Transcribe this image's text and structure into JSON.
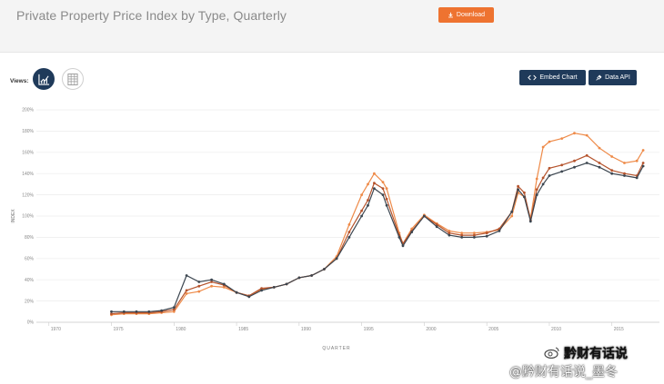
{
  "page": {
    "title": "Private Property Price Index by Type, Quarterly",
    "download_label": "Download"
  },
  "controls": {
    "views_label": "Views:",
    "embed_label": "Embed Chart",
    "api_label": "Data API"
  },
  "watermark": {
    "line1": "黔财有话说",
    "line2": "@黔财有话说_墨冬"
  },
  "colors": {
    "navy": "#1f3a5a",
    "orange": "#ee7330",
    "series_dark": "#3c4650",
    "series_mid": "#b5532c",
    "series_light": "#ee8a48"
  },
  "chart_data": {
    "type": "line",
    "xlabel": "QUARTER",
    "ylabel": "INDEX",
    "xlim": [
      1969,
      2018.8
    ],
    "ylim": [
      0,
      200
    ],
    "xticks": [
      "1970",
      "1975",
      "1980",
      "1985",
      "1990",
      "1995",
      "2000",
      "2005",
      "2010",
      "2015"
    ],
    "yticks": [
      "0%",
      "20%",
      "40%",
      "60%",
      "80%",
      "100%",
      "120%",
      "140%",
      "160%",
      "180%",
      "200%"
    ],
    "x": [
      1975,
      1976,
      1977,
      1978,
      1979,
      1980,
      1981,
      1982,
      1983,
      1984,
      1985,
      1986,
      1987,
      1988,
      1989,
      1990,
      1991,
      1992,
      1993,
      1994,
      1995,
      1995.5,
      1996,
      1996.7,
      1997,
      1998,
      1998.3,
      1999,
      2000,
      2001,
      2002,
      2003,
      2004,
      2005,
      2006,
      2007,
      2007.5,
      2008,
      2008.5,
      2009,
      2009.5,
      2010,
      2011,
      2012,
      2013,
      2014,
      2015,
      2016,
      2017,
      2017.5
    ],
    "series": [
      {
        "values": [
          10,
          10,
          10,
          10,
          11,
          14,
          44,
          38,
          40,
          36,
          28,
          24,
          30,
          33,
          36,
          42,
          44,
          50,
          60,
          80,
          100,
          110,
          126,
          120,
          110,
          80,
          72,
          85,
          100,
          90,
          82,
          80,
          80,
          81,
          86,
          104,
          125,
          118,
          95,
          120,
          130,
          138,
          142,
          146,
          150,
          146,
          140,
          138,
          136,
          147
        ]
      },
      {
        "values": [
          8,
          9,
          9,
          9,
          10,
          12,
          30,
          34,
          38,
          35,
          28,
          25,
          32,
          33,
          36,
          42,
          44,
          50,
          60,
          85,
          105,
          115,
          131,
          126,
          116,
          82,
          74,
          86,
          100,
          92,
          84,
          82,
          82,
          84,
          88,
          104,
          128,
          122,
          96,
          125,
          136,
          145,
          148,
          152,
          157,
          150,
          143,
          140,
          138,
          150
        ]
      },
      {
        "values": [
          7,
          8,
          8,
          8,
          9,
          10,
          27,
          29,
          34,
          33,
          28,
          25,
          31,
          33,
          36,
          42,
          44,
          50,
          62,
          92,
          120,
          130,
          140,
          132,
          126,
          84,
          74,
          88,
          101,
          93,
          86,
          84,
          84,
          85,
          87,
          100,
          122,
          118,
          98,
          135,
          165,
          170,
          173,
          178,
          176,
          164,
          156,
          150,
          152,
          162
        ]
      }
    ]
  }
}
